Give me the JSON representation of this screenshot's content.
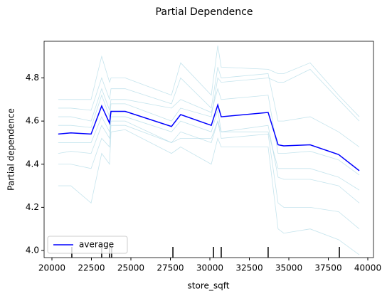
{
  "chart_data": {
    "type": "line",
    "title": "Partial Dependence",
    "x_label": "store_sqft",
    "y_label": "Partial dependence",
    "x": [
      20400,
      21200,
      22480,
      23150,
      23650,
      23740,
      24640,
      27570,
      28150,
      30090,
      30500,
      30720,
      33690,
      34320,
      34680,
      36350,
      38150,
      39460
    ],
    "series": [
      {
        "name": "average",
        "color": "#0000ff",
        "values": [
          4.54,
          4.545,
          4.54,
          4.67,
          4.59,
          4.645,
          4.645,
          4.575,
          4.63,
          4.58,
          4.675,
          4.62,
          4.64,
          4.49,
          4.485,
          4.49,
          4.445,
          4.37
        ]
      }
    ],
    "ice_color": "#add8e6",
    "ice_lines": [
      [
        4.7,
        4.7,
        4.7,
        4.9,
        4.78,
        4.8,
        4.8,
        4.72,
        4.87,
        4.72,
        4.95,
        4.85,
        4.84,
        4.82,
        4.82,
        4.87,
        4.72,
        4.62
      ],
      [
        4.62,
        4.62,
        4.6,
        4.75,
        4.65,
        4.7,
        4.7,
        4.66,
        4.7,
        4.64,
        4.75,
        4.7,
        4.72,
        4.45,
        4.45,
        4.46,
        4.42,
        4.35
      ],
      [
        4.45,
        4.46,
        4.45,
        4.58,
        4.52,
        4.6,
        4.6,
        4.5,
        4.55,
        4.5,
        4.6,
        4.55,
        4.58,
        4.34,
        4.33,
        4.33,
        4.3,
        4.22
      ],
      [
        4.3,
        4.3,
        4.22,
        4.45,
        4.4,
        4.55,
        4.56,
        4.45,
        4.48,
        4.4,
        4.52,
        4.48,
        4.48,
        4.1,
        4.08,
        4.1,
        4.05,
        3.98
      ],
      [
        4.58,
        4.58,
        4.57,
        4.72,
        4.62,
        4.68,
        4.68,
        4.6,
        4.66,
        4.62,
        4.8,
        4.78,
        4.8,
        4.78,
        4.78,
        4.84,
        4.7,
        4.6
      ],
      [
        4.5,
        4.5,
        4.5,
        4.62,
        4.55,
        4.62,
        4.62,
        4.55,
        4.6,
        4.55,
        4.65,
        4.55,
        4.55,
        4.38,
        4.38,
        4.38,
        4.34,
        4.28
      ],
      [
        4.66,
        4.66,
        4.65,
        4.8,
        4.7,
        4.75,
        4.75,
        4.68,
        4.8,
        4.66,
        4.85,
        4.8,
        4.82,
        4.6,
        4.6,
        4.62,
        4.55,
        4.48
      ],
      [
        4.4,
        4.4,
        4.38,
        4.52,
        4.48,
        4.58,
        4.58,
        4.5,
        4.52,
        4.52,
        4.6,
        4.52,
        4.54,
        4.22,
        4.2,
        4.2,
        4.18,
        4.1
      ]
    ],
    "rug": [
      21260,
      23150,
      23650,
      23780,
      27660,
      30230,
      30720,
      33690,
      38200
    ],
    "xlim": [
      19505,
      40360
    ],
    "ylim": [
      3.967,
      4.97
    ],
    "xticks": [
      20000,
      22500,
      25000,
      27500,
      30000,
      32500,
      35000,
      37500,
      40000
    ],
    "yticks": [
      {
        "value": 4,
        "label": "4.0"
      },
      4.2,
      4.4,
      4.6,
      4.8
    ],
    "legend": "lower left"
  }
}
